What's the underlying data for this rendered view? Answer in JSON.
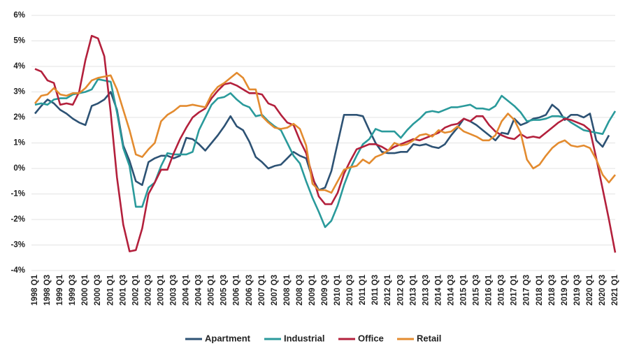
{
  "chart_data": {
    "type": "line",
    "categories": [
      "1998 Q1",
      null,
      "1998 Q3",
      null,
      "1999 Q1",
      null,
      "1999 Q3",
      null,
      "2000 Q1",
      null,
      "2000 Q3",
      null,
      "2001 Q1",
      null,
      "2001 Q3",
      null,
      "2002 Q1",
      null,
      "2002 Q3",
      null,
      "2003 Q1",
      null,
      "2003 Q3",
      null,
      "2004 Q1",
      null,
      "2004 Q3",
      null,
      "2005 Q1",
      null,
      "2005 Q3",
      null,
      "2006 Q1",
      null,
      "2006 Q3",
      null,
      "2007 Q1",
      null,
      "2007 Q3",
      null,
      "2008 Q1",
      null,
      "2008 Q3",
      null,
      "2009 Q1",
      null,
      "2009 Q3",
      null,
      "2010 Q1",
      null,
      "2010 Q3",
      null,
      "2011 Q1",
      null,
      "2011 Q3",
      null,
      "2012 Q1",
      null,
      "2012 Q3",
      null,
      "2013 Q1",
      null,
      "2013 Q3",
      null,
      "2014 Q1",
      null,
      "2014 Q3",
      null,
      "2015 Q1",
      null,
      "2015 Q3",
      null,
      "2016 Q1",
      null,
      "2016 Q3",
      null,
      "2017 Q1",
      null,
      "2017 Q3",
      null,
      "2018 Q1",
      null,
      "2018 Q3",
      null,
      "2019 Q1",
      null,
      "2019 Q3",
      null,
      "2020 Q1",
      null,
      "2020 Q3",
      null,
      "2021 Q1"
    ],
    "series": [
      {
        "name": "Apartment",
        "color": "#2d5274",
        "values": [
          2.15,
          2.45,
          2.7,
          2.55,
          2.3,
          2.15,
          1.95,
          1.8,
          1.7,
          2.45,
          2.55,
          2.7,
          3.0,
          2.3,
          0.9,
          0.3,
          -0.5,
          -0.65,
          0.25,
          0.4,
          0.5,
          0.5,
          0.4,
          0.5,
          1.2,
          1.15,
          0.95,
          0.7,
          1.0,
          1.3,
          1.65,
          2.05,
          1.65,
          1.5,
          1.05,
          0.45,
          0.25,
          0.0,
          0.1,
          0.15,
          0.4,
          0.65,
          0.5,
          0.4,
          -0.4,
          -0.85,
          -0.75,
          -0.1,
          1.0,
          2.1,
          2.1,
          2.1,
          2.05,
          1.5,
          1.0,
          0.65,
          0.6,
          0.6,
          0.65,
          0.65,
          0.95,
          0.9,
          0.95,
          0.85,
          0.8,
          0.95,
          1.3,
          1.6,
          1.95,
          1.85,
          1.7,
          1.5,
          1.3,
          1.1,
          1.4,
          1.35,
          1.95,
          1.7,
          1.8,
          1.95,
          2.0,
          2.1,
          2.5,
          2.3,
          1.9,
          2.1,
          2.1,
          2.0,
          2.15,
          1.1,
          0.85,
          1.3,
          null
        ]
      },
      {
        "name": "Industrial",
        "color": "#2a9a9b",
        "values": [
          2.5,
          2.55,
          2.5,
          2.7,
          2.75,
          2.75,
          2.9,
          2.95,
          3.0,
          3.1,
          3.5,
          3.45,
          3.4,
          2.2,
          0.8,
          0.1,
          -1.5,
          -1.5,
          -0.75,
          -0.55,
          0.1,
          0.6,
          0.55,
          0.55,
          0.55,
          0.65,
          1.5,
          2.0,
          2.5,
          2.75,
          2.8,
          2.95,
          2.7,
          2.5,
          2.4,
          2.05,
          2.1,
          1.85,
          1.65,
          1.5,
          1.0,
          0.5,
          0.2,
          -0.5,
          -1.15,
          -1.7,
          -2.3,
          -2.05,
          -1.45,
          -0.65,
          0.0,
          0.5,
          0.95,
          1.15,
          1.55,
          1.45,
          1.45,
          1.45,
          1.2,
          1.5,
          1.75,
          1.95,
          2.2,
          2.25,
          2.2,
          2.3,
          2.4,
          2.4,
          2.45,
          2.5,
          2.35,
          2.35,
          2.3,
          2.45,
          2.85,
          2.65,
          2.45,
          2.2,
          1.85,
          1.9,
          1.9,
          1.95,
          2.05,
          2.05,
          2.0,
          1.8,
          1.65,
          1.5,
          1.45,
          1.4,
          1.35,
          1.85,
          2.25
        ]
      },
      {
        "name": "Office",
        "color": "#b3203c",
        "values": [
          3.9,
          3.8,
          3.45,
          3.35,
          2.5,
          2.55,
          2.5,
          3.0,
          4.25,
          5.2,
          5.1,
          4.4,
          2.2,
          -0.35,
          -2.2,
          -3.25,
          -3.2,
          -2.35,
          -1.0,
          -0.55,
          -0.05,
          -0.05,
          0.6,
          1.15,
          1.6,
          2.0,
          2.2,
          2.35,
          2.75,
          3.05,
          3.3,
          3.35,
          3.25,
          3.1,
          2.95,
          2.95,
          2.9,
          2.55,
          2.45,
          2.1,
          1.8,
          1.7,
          1.1,
          0.6,
          -0.3,
          -1.1,
          -1.4,
          -1.4,
          -0.95,
          -0.2,
          0.3,
          0.75,
          0.85,
          0.95,
          0.95,
          0.85,
          0.7,
          0.85,
          0.95,
          1.05,
          1.15,
          1.1,
          1.2,
          1.3,
          1.4,
          1.6,
          1.7,
          1.75,
          1.95,
          1.85,
          2.05,
          2.05,
          1.7,
          1.45,
          1.3,
          1.2,
          1.15,
          1.35,
          1.2,
          1.25,
          1.2,
          1.4,
          1.6,
          1.8,
          1.95,
          1.9,
          1.8,
          1.7,
          1.5,
          0.4,
          -0.8,
          -2.0,
          -3.3
        ]
      },
      {
        "name": "Retail",
        "color": "#e38b2f",
        "values": [
          2.55,
          2.85,
          2.9,
          3.15,
          2.9,
          2.85,
          2.95,
          2.95,
          3.15,
          3.45,
          3.55,
          3.6,
          3.65,
          3.1,
          2.3,
          1.5,
          0.55,
          0.45,
          0.75,
          1.0,
          1.85,
          2.1,
          2.25,
          2.45,
          2.45,
          2.5,
          2.45,
          2.4,
          2.9,
          3.2,
          3.35,
          3.55,
          3.75,
          3.55,
          3.1,
          3.1,
          2.05,
          1.8,
          1.6,
          1.55,
          1.6,
          1.75,
          1.55,
          0.9,
          -0.6,
          -0.85,
          -0.85,
          -0.95,
          -0.5,
          -0.05,
          0.05,
          0.1,
          0.35,
          0.2,
          0.45,
          0.55,
          0.7,
          1.0,
          0.9,
          0.95,
          1.1,
          1.3,
          1.35,
          1.25,
          1.5,
          1.4,
          1.45,
          1.65,
          1.45,
          1.35,
          1.25,
          1.1,
          1.1,
          1.3,
          1.85,
          2.15,
          1.9,
          1.4,
          0.35,
          0.0,
          0.15,
          0.5,
          0.8,
          1.0,
          1.1,
          0.9,
          0.85,
          0.9,
          0.8,
          0.35,
          -0.25,
          -0.55,
          -0.25
        ]
      }
    ],
    "ylim": [
      -4,
      6
    ],
    "yticks": [
      {
        "value": -4,
        "label": "-4%"
      },
      {
        "value": -3,
        "label": "-3%"
      },
      {
        "value": -2,
        "label": "-2%"
      },
      {
        "value": -1,
        "label": "-1%"
      },
      {
        "value": 0,
        "label": "0%"
      },
      {
        "value": 1,
        "label": "1%"
      },
      {
        "value": 2,
        "label": "2%"
      },
      {
        "value": 3,
        "label": "3%"
      },
      {
        "value": 4,
        "label": "4%"
      },
      {
        "value": 5,
        "label": "5%"
      },
      {
        "value": 6,
        "label": "6%"
      }
    ],
    "grid": true,
    "legend": "bottom"
  }
}
